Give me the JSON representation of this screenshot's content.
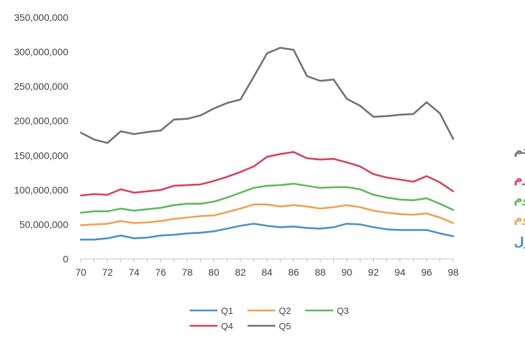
{
  "chart_data": {
    "type": "line",
    "x": [
      70,
      71,
      72,
      73,
      74,
      75,
      76,
      77,
      78,
      79,
      80,
      81,
      82,
      83,
      84,
      85,
      86,
      87,
      88,
      89,
      90,
      91,
      92,
      93,
      94,
      95,
      96,
      97,
      98
    ],
    "x_ticks": [
      "70",
      "72",
      "74",
      "76",
      "78",
      "80",
      "82",
      "84",
      "86",
      "88",
      "90",
      "92",
      "94",
      "96",
      "98"
    ],
    "y_ticks": [
      "0",
      "50,000,000",
      "100,000,000",
      "150,000,000",
      "200,000,000",
      "250,000,000",
      "300,000,000",
      "350,000,000"
    ],
    "ylim": [
      0,
      350000000
    ],
    "xlim": [
      70,
      98
    ],
    "grid": false,
    "legend_position": "bottom",
    "series": [
      {
        "name": "Q1",
        "label": "پنجک اول",
        "color": "#4a90c8",
        "values": [
          28000000,
          28000000,
          30000000,
          34000000,
          30000000,
          31000000,
          34000000,
          35000000,
          37000000,
          38000000,
          40000000,
          44000000,
          48000000,
          51000000,
          48000000,
          46000000,
          47000000,
          45000000,
          44000000,
          46000000,
          51000000,
          50000000,
          46000000,
          43000000,
          42000000,
          42000000,
          42000000,
          37000000,
          33000000
        ]
      },
      {
        "name": "Q2",
        "label": "پنجک دوم",
        "color": "#f0a050",
        "values": [
          49000000,
          50000000,
          51000000,
          55000000,
          52000000,
          53000000,
          55000000,
          58000000,
          60000000,
          62000000,
          63000000,
          68000000,
          73000000,
          79000000,
          79000000,
          76000000,
          78000000,
          76000000,
          73000000,
          75000000,
          78000000,
          75000000,
          70000000,
          67000000,
          65000000,
          64000000,
          66000000,
          60000000,
          52000000
        ]
      },
      {
        "name": "Q3",
        "label": "پنجک سوم",
        "color": "#5cb85c",
        "values": [
          67000000,
          69000000,
          69000000,
          73000000,
          70000000,
          72000000,
          74000000,
          78000000,
          80000000,
          80000000,
          83000000,
          89000000,
          96000000,
          103000000,
          106000000,
          107000000,
          109000000,
          106000000,
          103000000,
          104000000,
          104000000,
          101000000,
          93000000,
          89000000,
          86000000,
          85000000,
          88000000,
          80000000,
          71000000
        ]
      },
      {
        "name": "Q4",
        "label": "پنجک چهارم",
        "color": "#d9405a",
        "values": [
          92000000,
          94000000,
          93000000,
          101000000,
          96000000,
          98000000,
          100000000,
          106000000,
          107000000,
          108000000,
          113000000,
          119000000,
          126000000,
          134000000,
          148000000,
          152000000,
          155000000,
          146000000,
          144000000,
          145000000,
          140000000,
          134000000,
          123000000,
          118000000,
          115000000,
          112000000,
          120000000,
          111000000,
          98000000
        ]
      },
      {
        "name": "Q5",
        "label": "پنجک پنجم",
        "color": "#707070",
        "values": [
          183000000,
          173000000,
          168000000,
          185000000,
          181000000,
          184000000,
          186000000,
          202000000,
          203000000,
          208000000,
          218000000,
          226000000,
          231000000,
          264000000,
          298000000,
          306000000,
          303000000,
          265000000,
          258000000,
          260000000,
          232000000,
          222000000,
          206000000,
          207000000,
          209000000,
          210000000,
          227000000,
          211000000,
          174000000
        ]
      }
    ]
  }
}
